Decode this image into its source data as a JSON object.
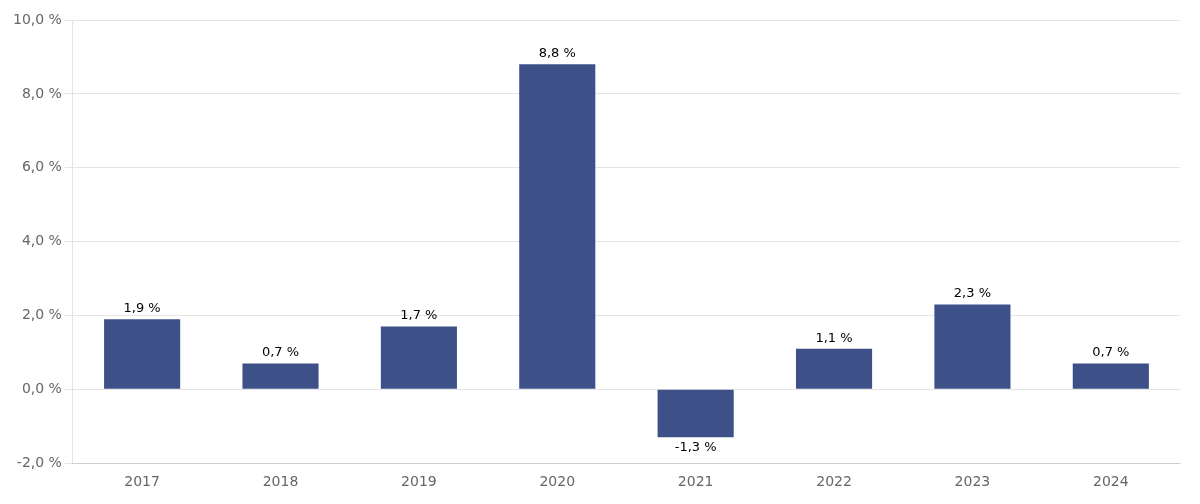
{
  "chart_data": {
    "type": "bar",
    "categories": [
      "2017",
      "2018",
      "2019",
      "2020",
      "2021",
      "2022",
      "2023",
      "2024"
    ],
    "values": [
      1.9,
      0.7,
      1.7,
      8.8,
      -1.3,
      1.1,
      2.3,
      0.7
    ],
    "value_labels": [
      "1,9 %",
      "0,7 %",
      "1,7 %",
      "8,8 %",
      "-1,3 %",
      "1,1 %",
      "2,3 %",
      "0,7 %"
    ],
    "data_labels": true,
    "color": "#3D5088",
    "ylim": [
      -2.0,
      10.0
    ],
    "yticks": [
      {
        "value": -2.0,
        "label": "-2,0 %"
      },
      {
        "value": 0.0,
        "label": "0,0 %"
      },
      {
        "value": 2.0,
        "label": "2,0 %"
      },
      {
        "value": 4.0,
        "label": "4,0 %"
      },
      {
        "value": 6.0,
        "label": "6,0 %"
      },
      {
        "value": 8.0,
        "label": "8,0 %"
      },
      {
        "value": 10.0,
        "label": "10,0 %"
      }
    ],
    "grid": true
  }
}
